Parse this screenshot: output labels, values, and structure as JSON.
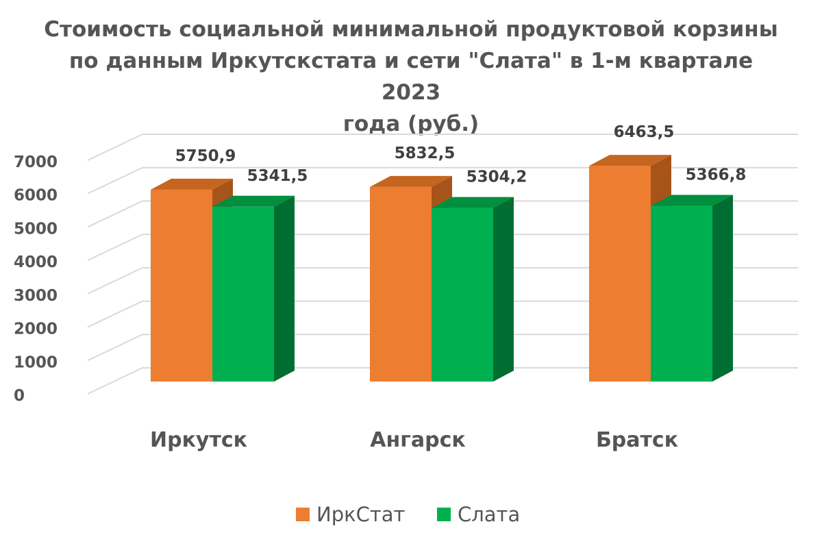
{
  "chart_data": {
    "type": "bar",
    "title_lines": [
      "Стоимость социальной минимальной продуктовой корзины",
      "по данным Иркутскстата и сети \"Слата\" в 1-м квартале 2023",
      "года (руб.)"
    ],
    "categories": [
      "Иркутск",
      "Ангарск",
      "Братск"
    ],
    "series": [
      {
        "name": "ИркСтат",
        "values": [
          5750.9,
          5832.5,
          6463.5
        ],
        "labels": [
          "5750,9",
          "5832,5",
          "6463,5"
        ],
        "color": "#ED7D31",
        "top_color": "#C5651F",
        "side_color": "#A6541A"
      },
      {
        "name": "Слата",
        "values": [
          5341.5,
          5304.2,
          5366.8
        ],
        "labels": [
          "5341,5",
          "5304,2",
          "5366,8"
        ],
        "color": "#00B050",
        "top_color": "#008F3E",
        "side_color": "#006E30"
      }
    ],
    "yticks": [
      "0",
      "1000",
      "2000",
      "3000",
      "4000",
      "5000",
      "6000",
      "7000"
    ],
    "ylim": [
      0,
      7000
    ],
    "legend_position": "bottom",
    "grid": true,
    "three_d": true
  }
}
